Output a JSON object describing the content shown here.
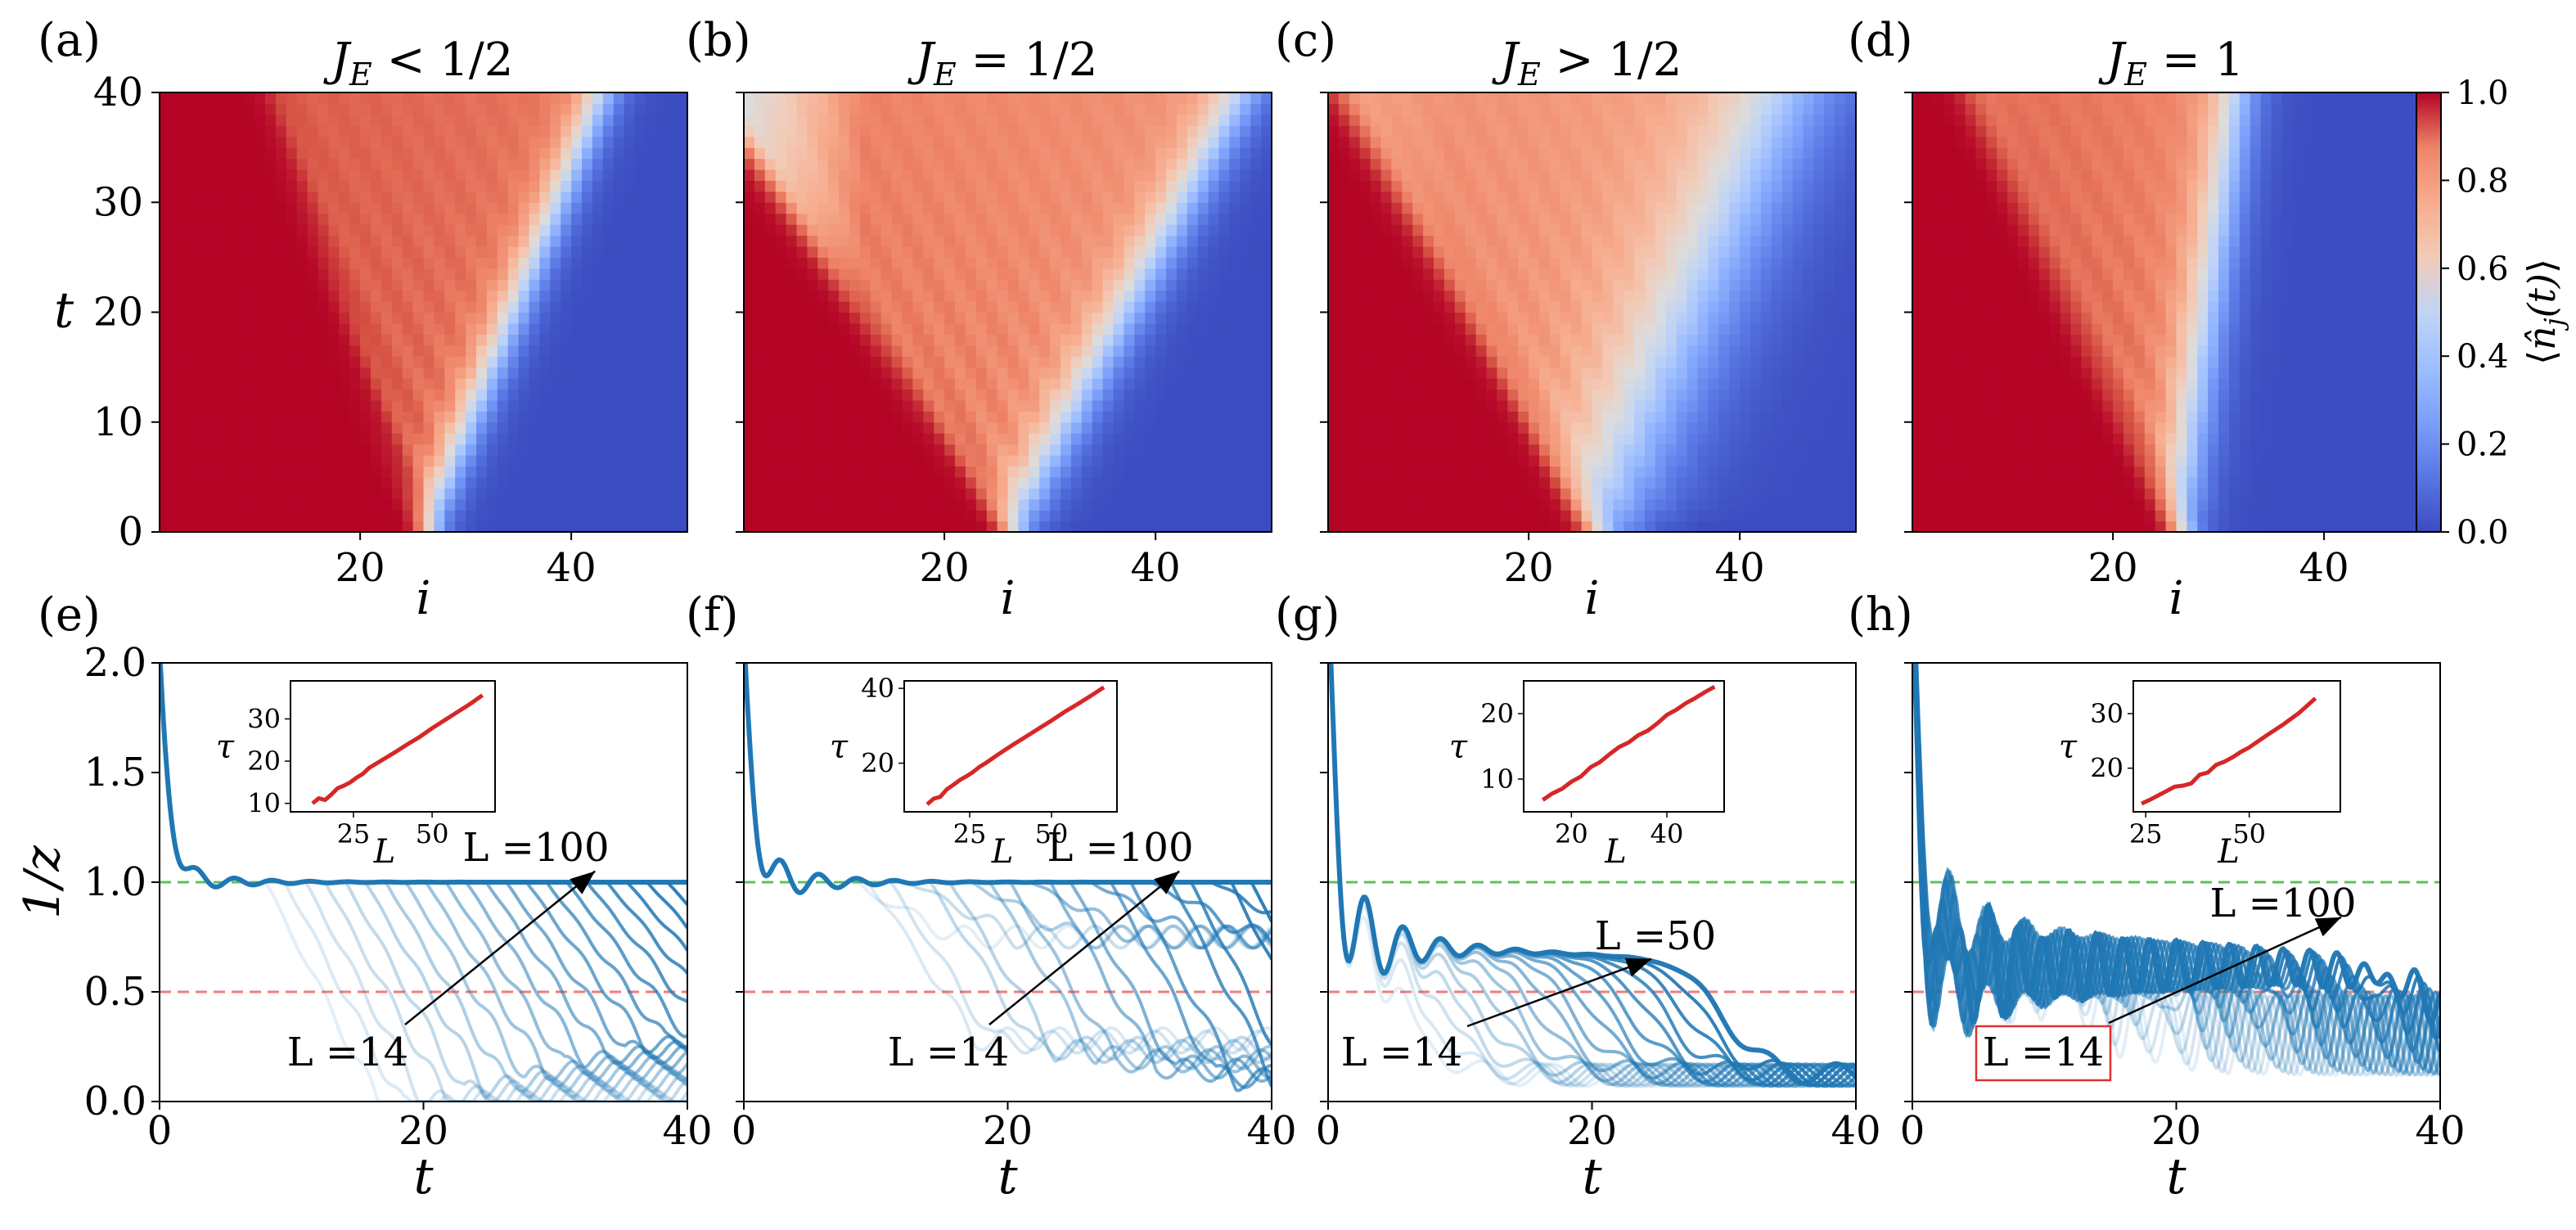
{
  "figure": {
    "panel_letters": [
      "(a)",
      "(b)",
      "(c)",
      "(d)",
      "(e)",
      "(f)",
      "(g)",
      "(h)"
    ],
    "colorbar": {
      "label": "⟨n̂j(t)⟩",
      "ticks": [
        "0.0",
        "0.2",
        "0.4",
        "0.6",
        "0.8",
        "1.0"
      ],
      "colormap": "coolwarm"
    },
    "reference_lines": {
      "green": "#5cc15c",
      "red": "#f07c7c"
    },
    "colors": {
      "curve": "#1f77b4",
      "inset_line": "#d62728",
      "label_box": "#e03030"
    }
  },
  "chart_data": [
    {
      "type": "heatmap",
      "panel": "(a)",
      "title": "J_E < 1/2",
      "xlabel": "i",
      "ylabel": "t",
      "xlim": [
        1,
        50
      ],
      "ylim": [
        0,
        40
      ],
      "xticks": [
        "20",
        "40"
      ],
      "yticks": [
        "0",
        "10",
        "20",
        "30",
        "40"
      ],
      "front_velocity_ballistic": 0.36,
      "front_velocity_empty": 0.42,
      "edge_width": 1.2,
      "left_depletion": 0.0,
      "description_values": {
        "filled_region": 1.0,
        "empty_region": 0.0,
        "interior": 0.88
      }
    },
    {
      "type": "heatmap",
      "panel": "(b)",
      "title": "J_E = 1/2",
      "xlabel": "i",
      "ylabel": "",
      "xlim": [
        1,
        50
      ],
      "ylim": [
        0,
        40
      ],
      "xticks": [
        "20",
        "40"
      ],
      "yticks": [],
      "front_velocity_ballistic": 0.7,
      "front_velocity_empty": 0.55,
      "edge_width": 1.6,
      "left_depletion": 0.35,
      "description_values": {
        "filled_region": 1.0,
        "empty_region": 0.0,
        "interior": 0.82
      }
    },
    {
      "type": "heatmap",
      "panel": "(c)",
      "title": "J_E > 1/2",
      "xlabel": "i",
      "ylabel": "",
      "xlim": [
        1,
        50
      ],
      "ylim": [
        0,
        40
      ],
      "xticks": [
        "20",
        "40"
      ],
      "yticks": [],
      "front_velocity_ballistic": 0.6,
      "front_velocity_empty": 0.45,
      "edge_width": 3.5,
      "left_depletion": 0.08,
      "description_values": {
        "filled_region": 1.0,
        "empty_region": 0.0,
        "interior": 0.78
      }
    },
    {
      "type": "heatmap",
      "panel": "(d)",
      "title": "J_E = 1",
      "xlabel": "i",
      "ylabel": "",
      "xlim": [
        1,
        50
      ],
      "ylim": [
        0,
        40
      ],
      "xticks": [
        "20",
        "40"
      ],
      "yticks": [],
      "front_velocity_ballistic": 0.5,
      "front_velocity_empty": 0.14,
      "edge_width": 1.4,
      "left_depletion": 0.05,
      "description_values": {
        "filled_region": 1.0,
        "empty_region": 0.0,
        "interior": 0.85
      }
    },
    {
      "type": "line",
      "panel": "(e)",
      "xlabel": "t",
      "ylabel": "1/z",
      "xlim": [
        0,
        40
      ],
      "ylim": [
        0,
        2
      ],
      "xticks": [
        "0",
        "20",
        "40"
      ],
      "yticks": [
        "0.0",
        "0.5",
        "1.0",
        "1.5",
        "2.0"
      ],
      "hlines": [
        1.0,
        0.5
      ],
      "plateau": 1.0,
      "later": "decay",
      "osc_amp": 0.03,
      "drop_time_range": [
        8,
        40
      ],
      "n_curves": 22,
      "labels": [
        {
          "text": "L =100",
          "arrow_to": [
            33,
            1.05
          ]
        },
        {
          "text": "L =14"
        }
      ],
      "inset": {
        "xlabel": "L",
        "ylabel": "τ",
        "xticks": [
          "25",
          "50"
        ],
        "yticks": [
          "10",
          "20",
          "30"
        ],
        "xlim": [
          5,
          70
        ],
        "ylim": [
          8,
          39
        ],
        "x": [
          12,
          14,
          16,
          18,
          20,
          22,
          24,
          26,
          28,
          30,
          34,
          38,
          42,
          46,
          50,
          54,
          58,
          62,
          66
        ],
        "y": [
          10.0,
          11.2,
          10.8,
          12.1,
          13.6,
          14.2,
          15.0,
          16.1,
          17.0,
          18.4,
          20.2,
          22.0,
          23.9,
          25.7,
          27.8,
          29.7,
          31.6,
          33.5,
          35.6
        ]
      }
    },
    {
      "type": "line",
      "panel": "(f)",
      "xlabel": "t",
      "ylabel": "",
      "xlim": [
        0,
        40
      ],
      "ylim": [
        0,
        2
      ],
      "xticks": [
        "0",
        "20",
        "40"
      ],
      "yticks": [],
      "hlines": [
        1.0,
        0.5
      ],
      "plateau": 1.0,
      "later": "mixed",
      "osc_amp": 0.06,
      "drop_time_range": [
        8,
        40
      ],
      "n_curves": 22,
      "labels": [
        {
          "text": "L =100",
          "arrow_to": [
            33,
            1.05
          ]
        },
        {
          "text": "L =14"
        }
      ],
      "inset": {
        "xlabel": "L",
        "ylabel": "τ",
        "xticks": [
          "25",
          "50"
        ],
        "yticks": [
          "20",
          "40"
        ],
        "xlim": [
          5,
          70
        ],
        "ylim": [
          7,
          42
        ],
        "x": [
          12,
          14,
          16,
          18,
          20,
          22,
          24,
          26,
          28,
          30,
          34,
          38,
          42,
          46,
          50,
          54,
          58,
          62,
          66
        ],
        "y": [
          9.0,
          10.5,
          11.0,
          13.0,
          14.2,
          15.5,
          16.5,
          17.6,
          19.0,
          20.1,
          22.5,
          24.8,
          27.0,
          29.2,
          31.4,
          33.7,
          35.8,
          38.0,
          40.3
        ]
      }
    },
    {
      "type": "line",
      "panel": "(g)",
      "xlabel": "t",
      "ylabel": "",
      "xlim": [
        0,
        40
      ],
      "ylim": [
        0,
        2
      ],
      "xticks": [
        "0",
        "20",
        "40"
      ],
      "yticks": [],
      "hlines": [
        1.0,
        0.5
      ],
      "plateau": 0.72,
      "later": "collapse",
      "osc_amp": 0.15,
      "drop_time_range": [
        6,
        30
      ],
      "n_curves": 18,
      "labels": [
        {
          "text": "L =50",
          "arrow_to": [
            24.5,
            0.65
          ]
        },
        {
          "text": "L =14"
        }
      ],
      "inset": {
        "xlabel": "L",
        "ylabel": "τ",
        "xticks": [
          "20",
          "40"
        ],
        "yticks": [
          "10",
          "20"
        ],
        "xlim": [
          10,
          52
        ],
        "ylim": [
          5,
          25
        ],
        "x": [
          14,
          16,
          18,
          20,
          22,
          24,
          26,
          28,
          30,
          32,
          34,
          36,
          38,
          40,
          42,
          44,
          46,
          48,
          50
        ],
        "y": [
          6.8,
          7.8,
          8.5,
          9.6,
          10.4,
          11.8,
          12.6,
          13.8,
          14.9,
          15.6,
          16.7,
          17.4,
          18.5,
          19.8,
          20.6,
          21.6,
          22.4,
          23.3,
          24.1
        ]
      }
    },
    {
      "type": "line",
      "panel": "(h)",
      "xlabel": "t",
      "ylabel": "",
      "xlim": [
        0,
        40
      ],
      "ylim": [
        0,
        2
      ],
      "xticks": [
        "0",
        "20",
        "40"
      ],
      "yticks": [],
      "hlines": [
        1.0,
        0.5
      ],
      "plateau": 0.62,
      "later": "noisy",
      "osc_amp": 0.16,
      "drop_time_range": [
        12,
        40
      ],
      "n_curves": 16,
      "labels": [
        {
          "text": "L =100",
          "arrow_to": [
            32.5,
            0.84
          ]
        },
        {
          "text": "L =14",
          "boxed": true
        }
      ],
      "inset": {
        "xlabel": "L",
        "ylabel": "τ",
        "xticks": [
          "25",
          "50"
        ],
        "yticks": [
          "20",
          "30"
        ],
        "xlim": [
          22,
          72
        ],
        "ylim": [
          12,
          36
        ],
        "x": [
          24,
          26,
          28,
          30,
          32,
          34,
          36,
          38,
          40,
          42,
          44,
          46,
          48,
          50,
          54,
          58,
          62,
          66
        ],
        "y": [
          13.5,
          14.2,
          15.0,
          15.8,
          16.6,
          16.8,
          17.2,
          18.8,
          19.2,
          20.6,
          21.2,
          22.0,
          23.0,
          23.8,
          25.9,
          27.9,
          30.1,
          32.8
        ]
      }
    }
  ]
}
